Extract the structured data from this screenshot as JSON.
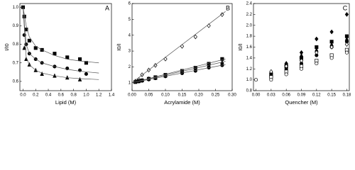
{
  "chart_data": [
    {
      "type": "scatter",
      "panel": "A",
      "x_label": "Lipid (M)",
      "y_label": "I/I0",
      "xlim": [
        -0.05,
        1.4
      ],
      "ylim": [
        0.55,
        1.02
      ],
      "xticks": [
        {
          "value": 0,
          "label": "0.0"
        },
        0.2,
        0.4,
        0.6,
        0.8,
        {
          "value": 1,
          "label": "1.0"
        },
        1.2,
        1.4
      ],
      "yticks": [
        0.6,
        0.7,
        0.8,
        0.9,
        {
          "value": 1,
          "label": "1.0"
        }
      ],
      "series": [
        {
          "marker": "square",
          "filled": true,
          "color": "#000000",
          "x": [
            0,
            0.02,
            0.05,
            0.1,
            0.2,
            0.3,
            0.5,
            0.7,
            0.9,
            1.0
          ],
          "values": [
            1.0,
            0.95,
            0.88,
            0.82,
            0.78,
            0.77,
            0.75,
            0.73,
            0.72,
            0.7
          ]
        },
        {
          "marker": "circle",
          "filled": true,
          "color": "#000000",
          "x": [
            0.02,
            0.05,
            0.1,
            0.2,
            0.3,
            0.5,
            0.7,
            0.9,
            1.0
          ],
          "values": [
            0.85,
            0.8,
            0.75,
            0.72,
            0.7,
            0.68,
            0.67,
            0.66,
            0.64
          ]
        },
        {
          "marker": "triangle",
          "filled": true,
          "color": "#000000",
          "x": [
            0.02,
            0.05,
            0.1,
            0.2,
            0.3,
            0.5,
            0.7,
            0.9
          ],
          "values": [
            0.78,
            0.72,
            0.69,
            0.66,
            0.64,
            0.63,
            0.62,
            0.61
          ]
        },
        {
          "marker": "line",
          "color": "#555555",
          "x": [
            0,
            0.05,
            0.1,
            0.2,
            0.3,
            0.5,
            0.7,
            0.9,
            1.2
          ],
          "values": [
            1.0,
            0.9,
            0.84,
            0.79,
            0.77,
            0.74,
            0.72,
            0.71,
            0.7
          ]
        },
        {
          "marker": "line",
          "color": "#555555",
          "x": [
            0,
            0.05,
            0.1,
            0.2,
            0.3,
            0.5,
            0.7,
            0.9,
            1.2
          ],
          "values": [
            1.0,
            0.8,
            0.75,
            0.72,
            0.7,
            0.68,
            0.665,
            0.655,
            0.645
          ]
        },
        {
          "marker": "line",
          "color": "#555555",
          "x": [
            0,
            0.05,
            0.1,
            0.2,
            0.3,
            0.5,
            0.7,
            0.9,
            1.2
          ],
          "values": [
            1.0,
            0.73,
            0.69,
            0.66,
            0.645,
            0.63,
            0.62,
            0.615,
            0.61
          ]
        }
      ]
    },
    {
      "type": "scatter",
      "panel": "B",
      "x_label": "Acrylamide (M)",
      "y_label": "I0/I",
      "xlim": [
        0,
        0.3
      ],
      "ylim": [
        0.5,
        6
      ],
      "xticks": [
        {
          "value": 0,
          "label": "0.00"
        },
        0.05,
        {
          "value": 0.1,
          "label": "0.10"
        },
        0.15,
        {
          "value": 0.2,
          "label": "0.20"
        },
        0.25,
        {
          "value": 0.3,
          "label": "0.30"
        }
      ],
      "yticks": [
        1,
        2,
        3,
        4,
        5,
        6
      ],
      "series": [
        {
          "marker": "diamond",
          "filled": false,
          "color": "#000000",
          "x": [
            0.01,
            0.02,
            0.03,
            0.05,
            0.07,
            0.1,
            0.15,
            0.19,
            0.23,
            0.27
          ],
          "values": [
            1.1,
            1.2,
            1.5,
            1.8,
            2.1,
            2.5,
            3.3,
            3.9,
            4.6,
            5.3
          ]
        },
        {
          "marker": "square",
          "filled": true,
          "color": "#000000",
          "x": [
            0.01,
            0.02,
            0.03,
            0.05,
            0.07,
            0.1,
            0.15,
            0.19,
            0.23,
            0.27
          ],
          "values": [
            1.05,
            1.1,
            1.15,
            1.25,
            1.35,
            1.5,
            1.75,
            1.95,
            2.2,
            2.5
          ]
        },
        {
          "marker": "triangle",
          "filled": true,
          "color": "#000000",
          "x": [
            0.01,
            0.02,
            0.03,
            0.05,
            0.07,
            0.1,
            0.15,
            0.19,
            0.23,
            0.27
          ],
          "values": [
            1.05,
            1.1,
            1.15,
            1.25,
            1.3,
            1.45,
            1.7,
            1.85,
            2.1,
            2.3
          ]
        },
        {
          "marker": "circle",
          "filled": true,
          "color": "#000000",
          "x": [
            0.01,
            0.02,
            0.03,
            0.05,
            0.07,
            0.1,
            0.15,
            0.19,
            0.23,
            0.27
          ],
          "values": [
            1.05,
            1.08,
            1.12,
            1.2,
            1.28,
            1.4,
            1.6,
            1.75,
            1.95,
            2.1
          ]
        },
        {
          "marker": "line",
          "color": "#555555",
          "x": [
            0,
            0.28
          ],
          "values": [
            1.0,
            5.5
          ]
        },
        {
          "marker": "line",
          "color": "#555555",
          "x": [
            0,
            0.28
          ],
          "values": [
            1.0,
            2.5
          ]
        },
        {
          "marker": "line",
          "color": "#555555",
          "x": [
            0,
            0.28
          ],
          "values": [
            1.0,
            2.35
          ]
        },
        {
          "marker": "line",
          "color": "#555555",
          "x": [
            0,
            0.28
          ],
          "values": [
            1.0,
            2.15
          ]
        }
      ]
    },
    {
      "type": "scatter",
      "panel": "C",
      "x_label": "Quencher (M)",
      "y_label": "I0/I",
      "xlim": [
        -0.005,
        0.185
      ],
      "ylim": [
        0.8,
        2.4
      ],
      "xticks": [
        {
          "value": 0,
          "label": "0.00"
        },
        0.03,
        0.06,
        0.09,
        0.12,
        0.15,
        0.18
      ],
      "yticks": [
        0.8,
        {
          "value": 1,
          "label": "1.0"
        },
        1.2,
        1.4,
        1.6,
        1.8,
        {
          "value": 2,
          "label": "2.0"
        },
        2.2,
        2.4
      ],
      "series": [
        {
          "marker": "diamond",
          "filled": true,
          "color": "#000000",
          "x": [
            0.03,
            0.06,
            0.09,
            0.12,
            0.15,
            0.18
          ],
          "values": [
            1.12,
            1.3,
            1.5,
            1.75,
            1.88,
            2.2
          ]
        },
        {
          "marker": "square",
          "filled": true,
          "color": "#000000",
          "x": [
            0.03,
            0.06,
            0.09,
            0.12,
            0.15,
            0.18
          ],
          "values": [
            1.1,
            1.25,
            1.4,
            1.6,
            1.7,
            1.8
          ]
        },
        {
          "marker": "triangle",
          "filled": true,
          "color": "#000000",
          "x": [
            0.03,
            0.06,
            0.09,
            0.12,
            0.15,
            0.18
          ],
          "values": [
            1.1,
            1.3,
            1.45,
            1.55,
            1.65,
            1.75
          ]
        },
        {
          "marker": "circle",
          "filled": true,
          "color": "#000000",
          "x": [
            0.03,
            0.06,
            0.09,
            0.12,
            0.15,
            0.18
          ],
          "values": [
            1.05,
            1.2,
            1.3,
            1.45,
            1.6,
            1.7
          ]
        },
        {
          "marker": "diamond",
          "filled": false,
          "color": "#000000",
          "x": [
            0.03,
            0.06,
            0.09,
            0.12,
            0.15,
            0.18
          ],
          "values": [
            1.15,
            1.25,
            1.35,
            1.5,
            1.6,
            1.65
          ]
        },
        {
          "marker": "square",
          "filled": false,
          "color": "#000000",
          "x": [
            0.03,
            0.06,
            0.09,
            0.12,
            0.15,
            0.18
          ],
          "values": [
            1.05,
            1.15,
            1.25,
            1.35,
            1.45,
            1.55
          ]
        },
        {
          "marker": "circle",
          "filled": false,
          "color": "#000000",
          "x": [
            0,
            0.03,
            0.06,
            0.09,
            0.12,
            0.15,
            0.18
          ],
          "values": [
            1.0,
            1.0,
            1.1,
            1.2,
            1.3,
            1.4,
            1.5
          ]
        }
      ]
    }
  ]
}
